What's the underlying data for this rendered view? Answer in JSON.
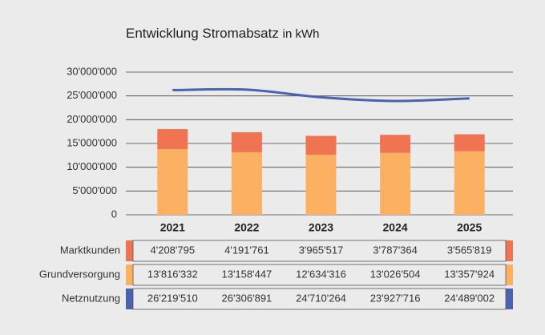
{
  "chart_data": {
    "type": "bar",
    "title": "Entwicklung Stromabsatz",
    "unit": "in kWh",
    "categories": [
      "2021",
      "2022",
      "2023",
      "2024",
      "2025"
    ],
    "series": [
      {
        "name": "Marktkunden",
        "color": "#f07352",
        "type": "bar",
        "values": [
          4208795,
          4191761,
          3965517,
          3787364,
          3565819
        ],
        "value_labels": [
          "4'208'795",
          "4'191'761",
          "3'965'517",
          "3'787'364",
          "3'565'819"
        ]
      },
      {
        "name": "Grundversorgung",
        "color": "#fbb062",
        "type": "bar",
        "values": [
          13816332,
          13158447,
          12634316,
          13026504,
          13357924
        ],
        "value_labels": [
          "13'816'332",
          "13'158'447",
          "12'634'316",
          "13'026'504",
          "13'357'924"
        ]
      },
      {
        "name": "Netznutzung",
        "color": "#4a62b0",
        "type": "line",
        "values": [
          26219510,
          26306891,
          24710264,
          23927716,
          24489002
        ],
        "value_labels": [
          "26'219'510",
          "26'306'891",
          "24'710'264",
          "23'927'716",
          "24'489'002"
        ]
      }
    ],
    "ylim": [
      0,
      30000000
    ],
    "yticks": [
      0,
      {
        "value": 5000000,
        "label": "5'000'000"
      },
      {
        "value": 10000000,
        "label": "10'000'000"
      },
      {
        "value": 15000000,
        "label": "15'000'000"
      },
      {
        "value": 20000000,
        "label": "20'000'000"
      },
      {
        "value": 25000000,
        "label": "25'000'000"
      },
      {
        "value": 30000000,
        "label": "30'000'000"
      }
    ],
    "grid": true
  }
}
